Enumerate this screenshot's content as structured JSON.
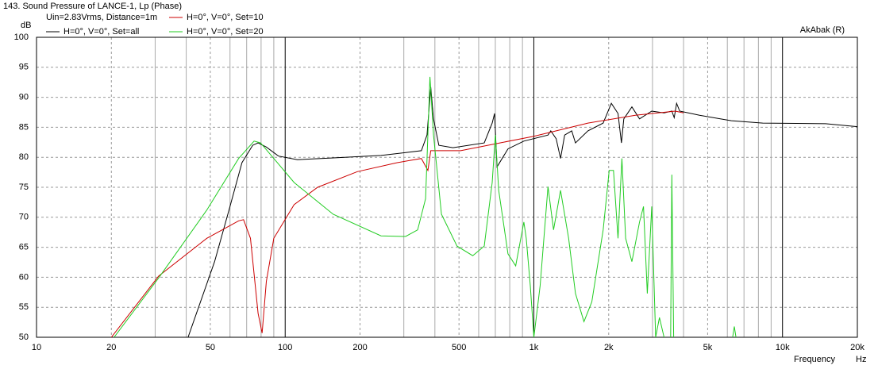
{
  "chart_data": {
    "type": "line",
    "title": "143. Sound Pressure of LANCE-1, Lp (Phase)",
    "subtitle": "Uin=2.83Vrms, Distance=1m",
    "annotation": "AkAbak (R)",
    "y_label": "dB",
    "x_label": "Frequency",
    "x_unit": "Hz",
    "xscale": "log",
    "xlim": [
      10,
      20000
    ],
    "ylim": [
      50,
      100
    ],
    "xticks": [
      10,
      20,
      50,
      100,
      200,
      500,
      {
        "value": 1000,
        "label": "1k"
      },
      {
        "value": 2000,
        "label": "2k"
      },
      {
        "value": 5000,
        "label": "5k"
      },
      {
        "value": 10000,
        "label": "10k"
      },
      {
        "value": 20000,
        "label": "20k"
      }
    ],
    "xminor": [
      30,
      40,
      60,
      70,
      80,
      90,
      300,
      400,
      600,
      700,
      800,
      900,
      3000,
      4000,
      6000,
      7000,
      8000,
      9000
    ],
    "yticks": [
      50,
      55,
      60,
      65,
      70,
      75,
      80,
      85,
      90,
      95,
      100
    ],
    "grid": true,
    "series": [
      {
        "name": "H=0°, V=0°, Set=all",
        "color": "#000000",
        "x": [
          40.7,
          52,
          60,
          67,
          74,
          77.8,
          84,
          94,
          112,
          156,
          243,
          353,
          372,
          385,
          395,
          415,
          473,
          632,
          680,
          695,
          711,
          787,
          912,
          1140,
          1170,
          1230,
          1280,
          1330,
          1420,
          1470,
          1650,
          1900,
          2050,
          2180,
          2250,
          2300,
          2480,
          2660,
          2980,
          3340,
          3590,
          3670,
          3750,
          3860,
          4640,
          6230,
          8330,
          14900,
          20000
        ],
        "values": [
          50,
          62.6,
          71.8,
          79.1,
          82,
          82.4,
          81.7,
          80.2,
          79.6,
          79.9,
          80.3,
          81.1,
          83.7,
          91.7,
          86.4,
          82,
          81.6,
          82.4,
          85.7,
          87.3,
          78.4,
          81.4,
          82.7,
          83.7,
          84.4,
          83.1,
          79.8,
          83.7,
          84.4,
          82.4,
          84.4,
          85.7,
          89,
          87.3,
          82.4,
          86.4,
          88.4,
          86.4,
          87.7,
          87.4,
          87.7,
          86.6,
          89,
          87.7,
          87,
          86.1,
          85.7,
          85.6,
          85.1
        ]
      },
      {
        "name": "H=0°, V=0°, Set=10",
        "color": "#cc0000",
        "x": [
          20,
          31,
          48.4,
          65,
          68,
          72.5,
          77.8,
          80.8,
          84,
          90,
          108.6,
          135,
          195,
          282,
          353,
          375,
          385,
          508,
          730,
          1000,
          1650,
          2560,
          3700,
          4000
        ],
        "values": [
          50,
          60.2,
          66.5,
          69.4,
          69.6,
          66.5,
          54,
          50.7,
          59.3,
          66.5,
          72.1,
          75,
          77.6,
          79.1,
          79.8,
          77.8,
          81.1,
          81.1,
          82.4,
          83.5,
          85.7,
          87,
          87.7,
          87.4
        ]
      },
      {
        "name": "H=0°, V=0°, Set=20",
        "color": "#22cc22",
        "x": [
          20.5,
          31,
          48.4,
          65,
          75,
          79.6,
          90,
          108.6,
          156,
          243,
          305,
          341,
          367,
          382,
          395,
          425,
          491,
          568,
          632,
          680,
          700,
          722,
          787,
          845,
          912,
          932,
          968,
          1000,
          1060,
          1140,
          1200,
          1280,
          1380,
          1470,
          1590,
          1710,
          1900,
          2010,
          2090,
          2180,
          2260,
          2340,
          2480,
          2660,
          2760,
          2860,
          2980,
          3090,
          3200,
          3340,
          3450,
          3550,
          3590,
          3650,
          5000,
          6300,
          6400,
          6500
        ],
        "values": [
          50,
          59.9,
          71.2,
          79.8,
          82.7,
          82.4,
          79.8,
          75.8,
          70.5,
          66.9,
          66.8,
          67.9,
          73.1,
          93.4,
          83.7,
          70.5,
          65.2,
          63.6,
          65.2,
          75.8,
          83.7,
          74.5,
          63.9,
          61.9,
          69.2,
          66.5,
          58.6,
          50,
          58.6,
          75.1,
          67.9,
          74.5,
          66.5,
          57.3,
          52.6,
          55.9,
          67.9,
          77.8,
          77.8,
          66.5,
          79.8,
          66.5,
          62.6,
          69.2,
          71.8,
          57.3,
          71.8,
          50,
          53.3,
          50,
          null,
          50,
          77.1,
          50,
          null,
          50,
          51.8,
          50
        ]
      }
    ]
  }
}
